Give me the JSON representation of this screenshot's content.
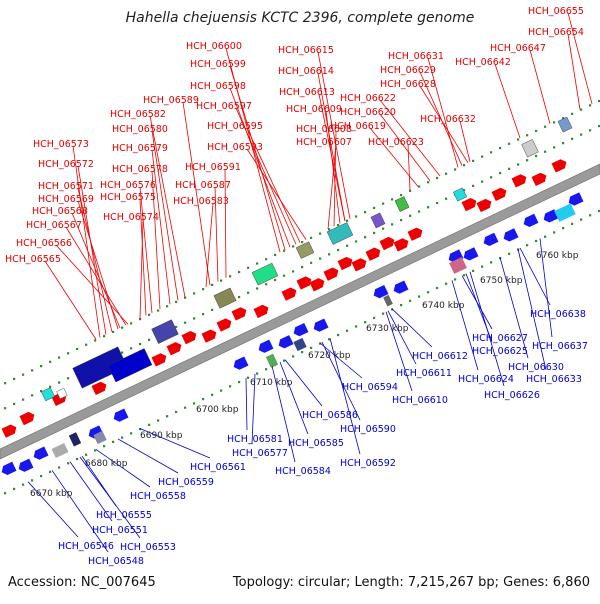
{
  "title": "Hahella chejuensis KCTC 2396, complete genome",
  "footer": {
    "accession": "Accession: NC_007645",
    "summary": "Topology: circular; Length: 7,215,267 bp; Genes: 6,860"
  },
  "colors": {
    "top_labels": "#e00000",
    "bottom_labels": "#0000cc",
    "backbone": "#9a9a9a",
    "tick": "#2e8b2e"
  },
  "kbp_ticks": [
    "6670 kbp",
    "6680 kbp",
    "6690 kbp",
    "6700 kbp",
    "6710 kbp",
    "6720 kbp",
    "6730 kbp",
    "6740 kbp",
    "6750 kbp",
    "6760 kbp"
  ],
  "top_labels": [
    "HCH_06655",
    "HCH_06654",
    "HCH_06647",
    "HCH_06642",
    "HCH_06631",
    "HCH_06629",
    "HCH_06628",
    "HCH_06622",
    "HCH_06620",
    "HCH_06619",
    "HCH_06632",
    "HCH_06623",
    "HCH_06600",
    "HCH_06599",
    "HCH_06598",
    "HCH_06597",
    "HCH_06595",
    "HCH_06593",
    "HCH_06615",
    "HCH_06614",
    "HCH_06613",
    "HCH_06609",
    "HCH_06608",
    "HCH_06607",
    "HCH_06589",
    "HCH_06582",
    "HCH_06580",
    "HCH_06579",
    "HCH_06578",
    "HCH_06576",
    "HCH_06575",
    "HCH_06574",
    "HCH_06591",
    "HCH_06587",
    "HCH_06583",
    "HCH_06573",
    "HCH_06572",
    "HCH_06571",
    "HCH_06569",
    "HCH_06568",
    "HCH_06567",
    "HCH_06566",
    "HCH_06565"
  ],
  "bottom_labels": [
    "HCH_06638",
    "HCH_06637",
    "HCH_06627",
    "HCH_06625",
    "HCH_06630",
    "HCH_06633",
    "HCH_06624",
    "HCH_06626",
    "HCH_06612",
    "HCH_06611",
    "HCH_06610",
    "HCH_06594",
    "HCH_06586",
    "HCH_06585",
    "HCH_06584",
    "HCH_06590",
    "HCH_06592",
    "HCH_06581",
    "HCH_06577",
    "HCH_06561",
    "HCH_06559",
    "HCH_06558",
    "HCH_06555",
    "HCH_06551",
    "HCH_06553",
    "HCH_06546",
    "HCH_06548"
  ]
}
